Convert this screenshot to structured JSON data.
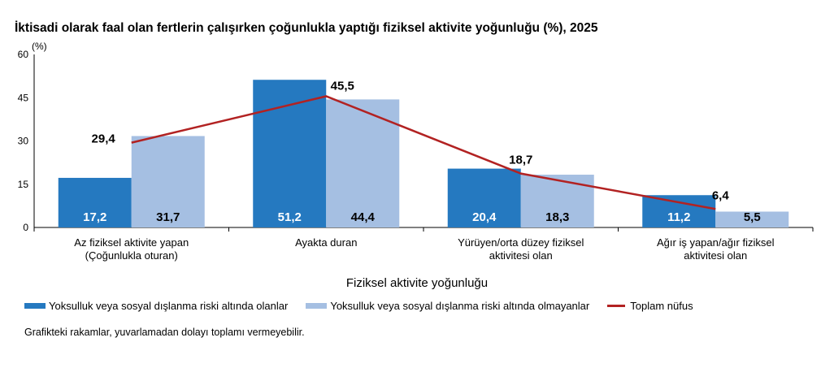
{
  "chart_data": {
    "type": "bar",
    "title": "İktisadi olarak faal olan fertlerin çalışırken çoğunlukla yaptığı fiziksel aktivite yoğunluğu (%), 2025",
    "xlabel": "Fiziksel aktivite yoğunluğu",
    "y_unit_label": "(%)",
    "ylim": [
      0,
      60
    ],
    "yticks": [
      "0",
      "15",
      "30",
      "45",
      "60"
    ],
    "categories": [
      [
        "Az fiziksel aktivite yapan",
        "(Çoğunlukla oturan)"
      ],
      [
        "Ayakta duran"
      ],
      [
        "Yürüyen/orta düzey fiziksel",
        "aktivitesi olan"
      ],
      [
        "Ağır iş yapan/ağır fiziksel",
        "aktivitesi olan"
      ]
    ],
    "series": [
      {
        "name": "Yoksulluk veya sosyal dışlanma riski altında olanlar",
        "type": "bar",
        "color": "#2579c0",
        "values": [
          17.2,
          51.2,
          20.4,
          11.2
        ],
        "labels": [
          "17,2",
          "51,2",
          "20,4",
          "11,2"
        ]
      },
      {
        "name": "Yoksulluk veya sosyal dışlanma riski altında olmayanlar",
        "type": "bar",
        "color": "#a5bfe2",
        "values": [
          31.7,
          44.4,
          18.3,
          5.5
        ],
        "labels": [
          "31,7",
          "44,4",
          "18,3",
          "5,5"
        ]
      },
      {
        "name": "Toplam nüfus",
        "type": "line",
        "color": "#b22222",
        "values": [
          29.4,
          45.5,
          18.7,
          6.4
        ],
        "labels": [
          "29,4",
          "45,5",
          "18,7",
          "6,4"
        ]
      }
    ],
    "grid": false,
    "legend_position": "bottom"
  },
  "footnote": "Grafikteki rakamlar, yuvarlamadan dolayı toplamı vermeyebilir."
}
